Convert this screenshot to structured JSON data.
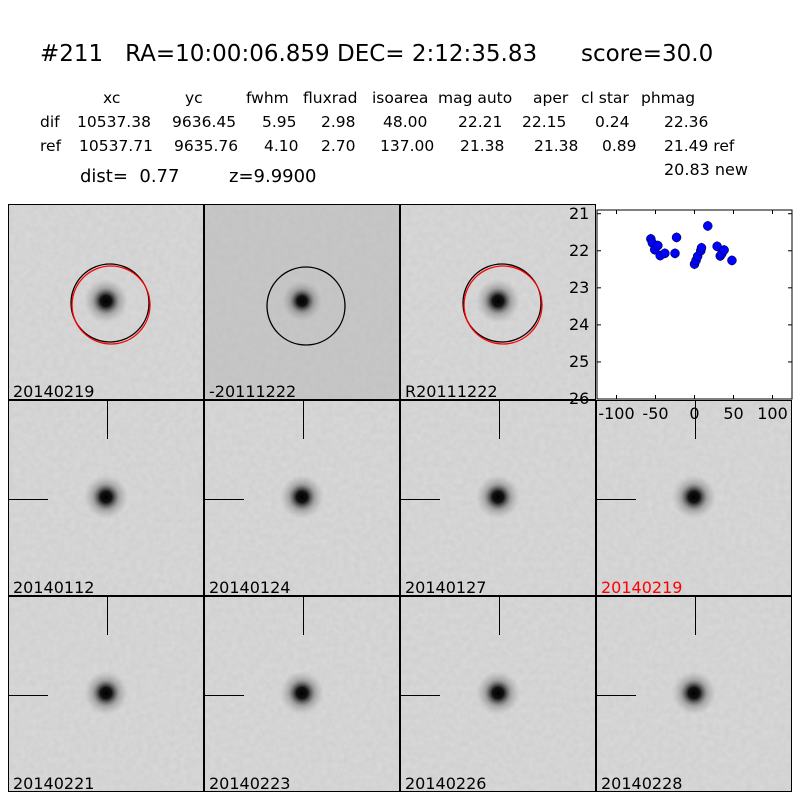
{
  "title": "#211   RA=10:00:06.859 DEC= 2:12:35.83      score=30.0",
  "table": {
    "headers": [
      "xc",
      "yc",
      "fwhm",
      "fluxrad",
      "isoarea",
      "mag auto",
      "aper",
      "cl star",
      "phmag"
    ],
    "rows": [
      {
        "label": "dif",
        "values": [
          "10537.38",
          "9636.45",
          "5.95",
          "2.98",
          "48.00",
          "22.21",
          "22.15",
          "0.24",
          "22.36"
        ]
      },
      {
        "label": "ref",
        "values": [
          "10537.71",
          "9635.76",
          "4.10",
          "2.70",
          "137.00",
          "21.38",
          "21.38",
          "0.89",
          "21.49 ref"
        ]
      }
    ],
    "new_mag": "20.83 new"
  },
  "dist": "dist=  0.77",
  "z": "z=9.9900",
  "panels": [
    {
      "label": "20140219",
      "label_color": "#000000",
      "marker": "circles"
    },
    {
      "label": "-20111222",
      "label_color": "#000000",
      "marker": "circle"
    },
    {
      "label": "R20111222",
      "label_color": "#000000",
      "marker": "circles"
    },
    {
      "label": "20140112",
      "label_color": "#000000",
      "marker": "crosshair"
    },
    {
      "label": "20140124",
      "label_color": "#000000",
      "marker": "crosshair"
    },
    {
      "label": "20140127",
      "label_color": "#000000",
      "marker": "crosshair"
    },
    {
      "label": "20140219",
      "label_color": "#ff0000",
      "marker": "crosshair"
    },
    {
      "label": "20140221",
      "label_color": "#000000",
      "marker": "crosshair"
    },
    {
      "label": "20140223",
      "label_color": "#000000",
      "marker": "crosshair"
    },
    {
      "label": "20140226",
      "label_color": "#000000",
      "marker": "crosshair"
    },
    {
      "label": "20140228",
      "label_color": "#000000",
      "marker": "crosshair"
    }
  ],
  "chart_data": {
    "type": "scatter",
    "title": "",
    "xlabel": "",
    "ylabel": "",
    "xlim": [
      -125,
      125
    ],
    "ylim": [
      26,
      20.9
    ],
    "y_inverted": true,
    "xticks": [
      "-100",
      "-50",
      "0",
      "50",
      "100"
    ],
    "xtick_values": [
      -100,
      -50,
      0,
      50,
      100
    ],
    "yticks": [
      "21",
      "22",
      "23",
      "24",
      "25",
      "26"
    ],
    "ytick_values": [
      21,
      22,
      23,
      24,
      25,
      26
    ],
    "color": "#0000ff",
    "x": [
      -56,
      -54,
      -51,
      -47,
      -44,
      -38,
      -25,
      -23,
      0,
      2,
      4,
      8,
      9,
      17,
      29,
      33,
      35,
      38,
      48
    ],
    "y": [
      21.68,
      21.79,
      21.97,
      21.86,
      22.13,
      22.07,
      22.07,
      21.64,
      22.36,
      22.26,
      22.15,
      22.0,
      21.92,
      21.33,
      21.88,
      22.14,
      22.08,
      21.98,
      22.26
    ]
  }
}
